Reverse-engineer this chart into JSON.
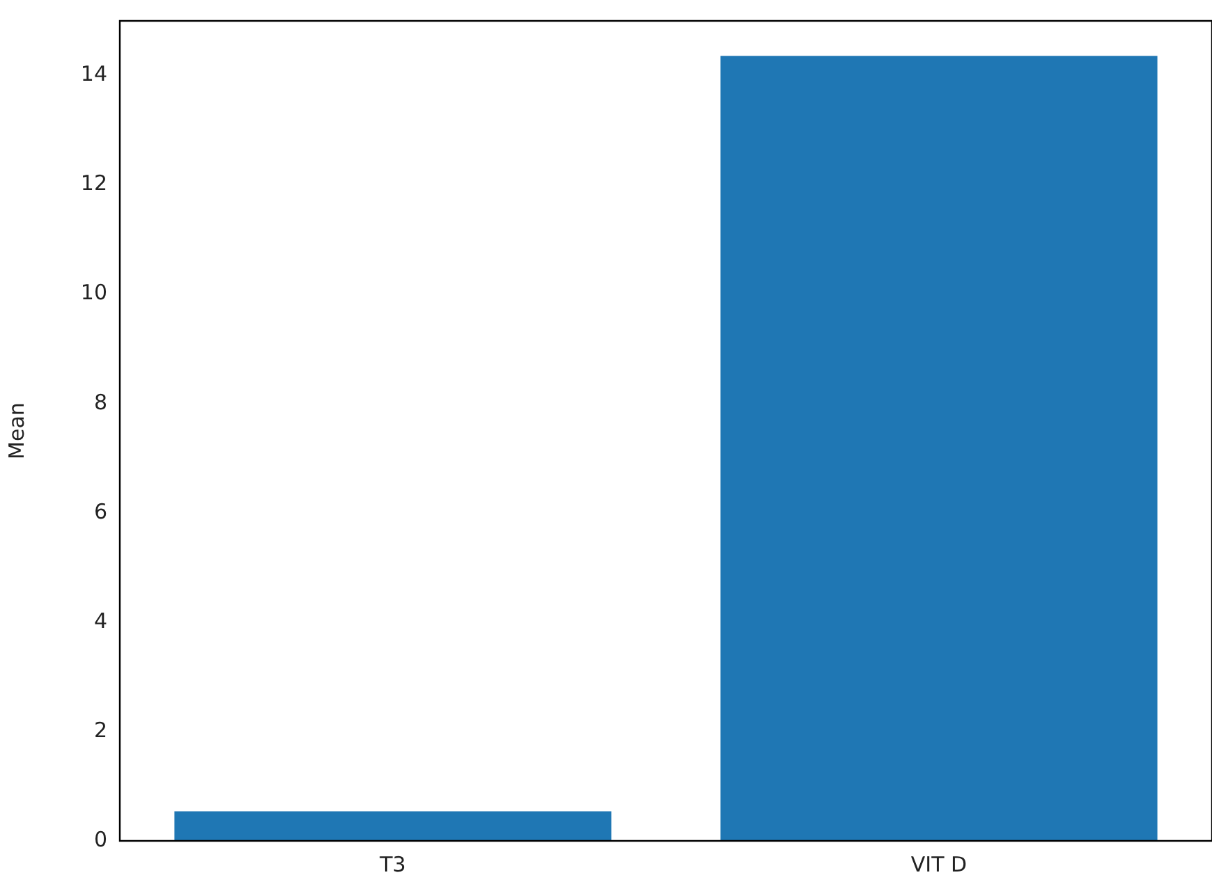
{
  "chart_data": {
    "type": "bar",
    "categories": [
      "T3",
      "VIT D"
    ],
    "values": [
      0.54,
      14.36
    ],
    "color": "#1f77b4",
    "ylabel": "Mean",
    "ylim": [
      0,
      15
    ],
    "yticks": [
      0,
      2,
      4,
      6,
      8,
      10,
      12,
      14
    ],
    "grid": false,
    "legend": false
  }
}
